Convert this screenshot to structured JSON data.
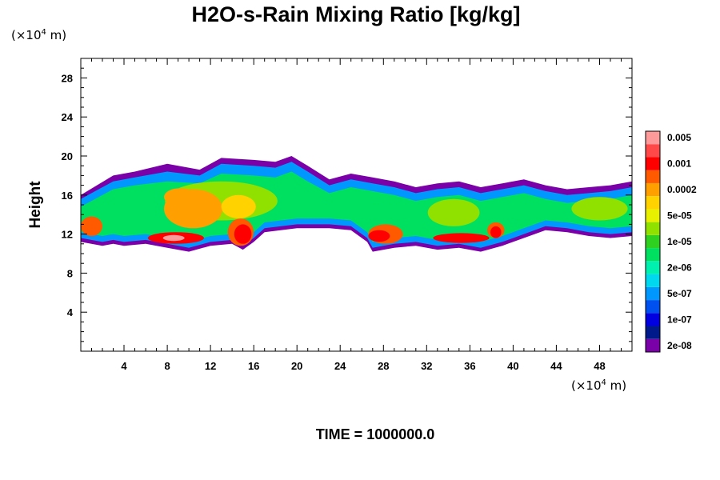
{
  "chart_data": {
    "type": "heatmap",
    "title": "H2O-s-Rain Mixing Ratio [kg/kg]",
    "ylabel": "Height",
    "x_unit": {
      "prefix": "(×10",
      "exp": "4",
      "suffix": " m)"
    },
    "y_unit": {
      "prefix": "(×10",
      "exp": "4",
      "suffix": " m)"
    },
    "xlim": [
      0,
      51
    ],
    "ylim": [
      0,
      30
    ],
    "x_ticks": [
      4,
      8,
      12,
      16,
      20,
      24,
      28,
      32,
      36,
      40,
      44,
      48
    ],
    "y_ticks": [
      4,
      8,
      12,
      16,
      20,
      24,
      28
    ],
    "x_tick_labels": [
      "4",
      "8",
      "12",
      "16",
      "20",
      "24",
      "28",
      "32",
      "36",
      "40",
      "44",
      "48"
    ],
    "y_tick_labels": [
      "4",
      "8",
      "12",
      "16",
      "20",
      "24",
      "28"
    ],
    "colorbar": {
      "colors": [
        "#7a00a8",
        "#001a8c",
        "#0000e0",
        "#0050f0",
        "#0098ff",
        "#00d8f0",
        "#00f0b0",
        "#00e060",
        "#30d020",
        "#90e000",
        "#e8f000",
        "#ffd200",
        "#ffa000",
        "#ff5a00",
        "#ff0000",
        "#ff4848",
        "#ff9a9a"
      ],
      "labels": [
        "2e-08",
        "1e-07",
        "5e-07",
        "2e-06",
        "1e-05",
        "5e-05",
        "0.0002",
        "0.001",
        "0.005"
      ],
      "label_band_index": [
        1,
        3,
        5,
        7,
        9,
        11,
        13,
        15,
        17
      ]
    },
    "field_bands": [
      {
        "level": 0,
        "color": "#7a00a8",
        "top": [
          [
            0,
            16.0
          ],
          [
            3,
            18.0
          ],
          [
            5,
            18.4
          ],
          [
            8,
            19.2
          ],
          [
            11,
            18.6
          ],
          [
            13,
            19.8
          ],
          [
            16,
            19.6
          ],
          [
            18,
            19.4
          ],
          [
            19.5,
            20.0
          ],
          [
            21,
            19.0
          ],
          [
            23,
            17.6
          ],
          [
            25,
            18.2
          ],
          [
            27,
            17.8
          ],
          [
            29,
            17.4
          ],
          [
            31,
            16.8
          ],
          [
            33,
            17.2
          ],
          [
            35,
            17.4
          ],
          [
            37,
            16.8
          ],
          [
            39,
            17.2
          ],
          [
            41,
            17.6
          ],
          [
            43,
            17.0
          ],
          [
            45,
            16.6
          ],
          [
            47,
            16.8
          ],
          [
            49,
            17.0
          ],
          [
            51,
            17.4
          ]
        ],
        "bottom": [
          [
            0,
            11.2
          ],
          [
            2,
            10.8
          ],
          [
            3,
            11.0
          ],
          [
            4,
            10.8
          ],
          [
            6,
            11.0
          ],
          [
            8,
            10.6
          ],
          [
            10,
            10.2
          ],
          [
            12,
            10.8
          ],
          [
            14,
            11.0
          ],
          [
            15,
            10.4
          ],
          [
            16,
            11.2
          ],
          [
            17,
            12.2
          ],
          [
            20,
            12.6
          ],
          [
            23,
            12.6
          ],
          [
            25,
            12.4
          ],
          [
            26.5,
            11.2
          ],
          [
            27,
            10.2
          ],
          [
            29,
            10.6
          ],
          [
            31,
            10.8
          ],
          [
            33,
            10.4
          ],
          [
            35,
            10.6
          ],
          [
            37,
            10.2
          ],
          [
            39,
            10.8
          ],
          [
            41,
            11.6
          ],
          [
            43,
            12.4
          ],
          [
            45,
            12.2
          ],
          [
            47,
            11.8
          ],
          [
            49,
            11.6
          ],
          [
            51,
            11.8
          ]
        ]
      },
      {
        "level": 4,
        "color": "#0098ff",
        "top": [
          [
            0,
            15.6
          ],
          [
            3,
            17.4
          ],
          [
            5,
            17.8
          ],
          [
            8,
            18.4
          ],
          [
            11,
            18.0
          ],
          [
            13,
            19.2
          ],
          [
            16,
            19.0
          ],
          [
            18,
            18.8
          ],
          [
            19.5,
            19.4
          ],
          [
            21,
            18.4
          ],
          [
            23,
            17.0
          ],
          [
            25,
            17.6
          ],
          [
            27,
            17.2
          ],
          [
            29,
            16.8
          ],
          [
            31,
            16.2
          ],
          [
            33,
            16.6
          ],
          [
            35,
            16.8
          ],
          [
            37,
            16.2
          ],
          [
            39,
            16.6
          ],
          [
            41,
            17.0
          ],
          [
            43,
            16.4
          ],
          [
            45,
            16.0
          ],
          [
            47,
            16.2
          ],
          [
            49,
            16.4
          ],
          [
            51,
            16.8
          ]
        ],
        "bottom": [
          [
            0,
            11.6
          ],
          [
            2,
            11.2
          ],
          [
            3,
            11.4
          ],
          [
            4,
            11.2
          ],
          [
            6,
            11.4
          ],
          [
            8,
            11.0
          ],
          [
            10,
            10.6
          ],
          [
            12,
            11.2
          ],
          [
            14,
            11.4
          ],
          [
            15,
            10.8
          ],
          [
            16,
            11.6
          ],
          [
            17,
            12.6
          ],
          [
            20,
            13.0
          ],
          [
            23,
            13.0
          ],
          [
            25,
            12.8
          ],
          [
            26.5,
            11.6
          ],
          [
            27,
            10.6
          ],
          [
            29,
            11.0
          ],
          [
            31,
            11.2
          ],
          [
            33,
            10.8
          ],
          [
            35,
            11.0
          ],
          [
            37,
            10.6
          ],
          [
            39,
            11.2
          ],
          [
            41,
            12.0
          ],
          [
            43,
            12.8
          ],
          [
            45,
            12.6
          ],
          [
            47,
            12.2
          ],
          [
            49,
            12.0
          ],
          [
            51,
            12.2
          ]
        ]
      },
      {
        "level": 7,
        "color": "#00e060",
        "top": [
          [
            0,
            14.8
          ],
          [
            3,
            16.6
          ],
          [
            5,
            17.0
          ],
          [
            8,
            17.4
          ],
          [
            11,
            17.2
          ],
          [
            13,
            18.2
          ],
          [
            16,
            18.0
          ],
          [
            18,
            17.8
          ],
          [
            19.5,
            18.4
          ],
          [
            21,
            17.4
          ],
          [
            23,
            16.2
          ],
          [
            25,
            16.8
          ],
          [
            27,
            16.4
          ],
          [
            29,
            16.0
          ],
          [
            31,
            15.4
          ],
          [
            33,
            15.8
          ],
          [
            35,
            16.0
          ],
          [
            37,
            15.4
          ],
          [
            39,
            15.8
          ],
          [
            41,
            16.2
          ],
          [
            43,
            15.6
          ],
          [
            45,
            15.2
          ],
          [
            47,
            15.4
          ],
          [
            49,
            15.6
          ],
          [
            51,
            16.0
          ]
        ],
        "bottom": [
          [
            0,
            12.2
          ],
          [
            2,
            11.8
          ],
          [
            3,
            12.0
          ],
          [
            4,
            11.8
          ],
          [
            6,
            12.0
          ],
          [
            8,
            11.6
          ],
          [
            10,
            11.2
          ],
          [
            12,
            11.8
          ],
          [
            14,
            12.0
          ],
          [
            15,
            11.4
          ],
          [
            16,
            12.2
          ],
          [
            17,
            13.2
          ],
          [
            20,
            13.6
          ],
          [
            23,
            13.6
          ],
          [
            25,
            13.4
          ],
          [
            26.5,
            12.2
          ],
          [
            27,
            11.2
          ],
          [
            29,
            11.6
          ],
          [
            31,
            11.8
          ],
          [
            33,
            11.4
          ],
          [
            35,
            11.6
          ],
          [
            37,
            11.2
          ],
          [
            39,
            11.8
          ],
          [
            41,
            12.6
          ],
          [
            43,
            13.4
          ],
          [
            45,
            13.2
          ],
          [
            47,
            12.8
          ],
          [
            49,
            12.6
          ],
          [
            51,
            12.8
          ]
        ]
      }
    ],
    "field_blobs": [
      {
        "color": "#90e000",
        "x": 13.0,
        "y": 15.4,
        "rx": 5.2,
        "ry": 2.0
      },
      {
        "color": "#90e000",
        "x": 34.5,
        "y": 14.2,
        "rx": 2.4,
        "ry": 1.4
      },
      {
        "color": "#90e000",
        "x": 48.0,
        "y": 14.6,
        "rx": 2.6,
        "ry": 1.2
      },
      {
        "color": "#ffa000",
        "x": 10.4,
        "y": 14.6,
        "rx": 2.7,
        "ry": 2.0
      },
      {
        "color": "#ffa000",
        "x": 9.2,
        "y": 15.8,
        "rx": 1.5,
        "ry": 0.9
      },
      {
        "color": "#ffd200",
        "x": 14.6,
        "y": 14.8,
        "rx": 1.6,
        "ry": 1.2
      },
      {
        "color": "#ff5a00",
        "x": 1.0,
        "y": 12.8,
        "rx": 1.0,
        "ry": 1.0
      },
      {
        "color": "#ff5a00",
        "x": 14.8,
        "y": 12.2,
        "rx": 1.2,
        "ry": 1.4
      },
      {
        "color": "#ff5a00",
        "x": 28.2,
        "y": 12.0,
        "rx": 1.6,
        "ry": 1.0
      },
      {
        "color": "#ff5a00",
        "x": 38.4,
        "y": 12.4,
        "rx": 0.8,
        "ry": 0.8
      },
      {
        "color": "#ff0000",
        "x": 8.8,
        "y": 11.6,
        "rx": 2.6,
        "ry": 0.6
      },
      {
        "color": "#ff0000",
        "x": 15.0,
        "y": 12.0,
        "rx": 0.8,
        "ry": 1.0
      },
      {
        "color": "#ff0000",
        "x": 27.6,
        "y": 11.8,
        "rx": 1.0,
        "ry": 0.6
      },
      {
        "color": "#ff0000",
        "x": 35.2,
        "y": 11.6,
        "rx": 2.6,
        "ry": 0.5
      },
      {
        "color": "#ff0000",
        "x": 38.4,
        "y": 12.2,
        "rx": 0.5,
        "ry": 0.6
      },
      {
        "color": "#ff9a9a",
        "x": 8.6,
        "y": 11.6,
        "rx": 1.0,
        "ry": 0.3
      }
    ]
  },
  "time_label": "TIME = 1000000.0"
}
